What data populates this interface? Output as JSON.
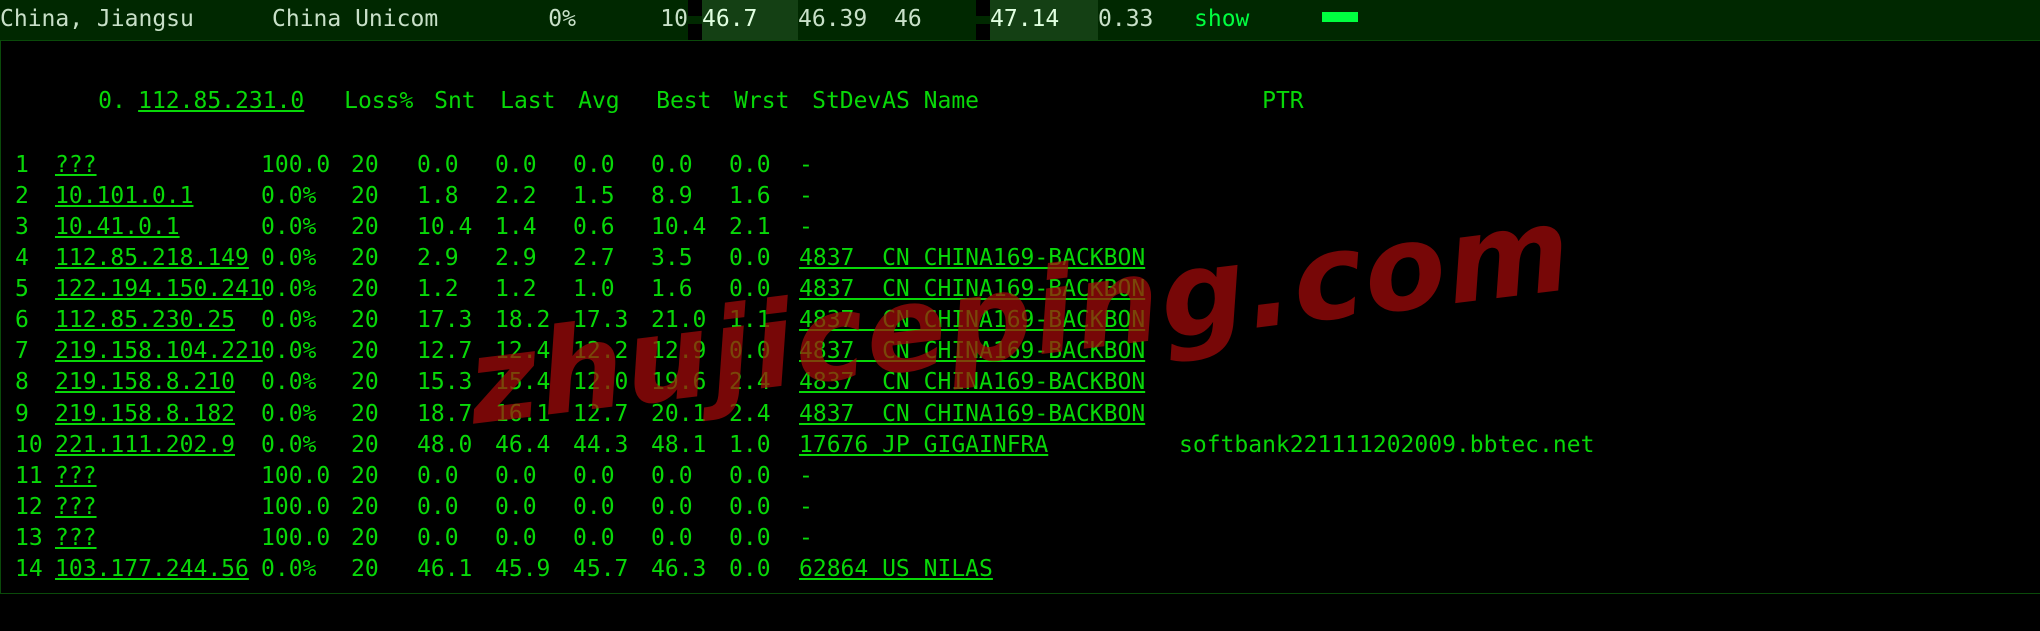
{
  "summary": {
    "location": "China, Jiangsu",
    "isp": "China Unicom",
    "loss_pct": "0%",
    "sent": "10",
    "v_last": "46.7",
    "v_avg": "46.39",
    "v_best": "46",
    "v_wrst": "47.14",
    "v_stdev": "0.33",
    "show_label": "show"
  },
  "columns": {
    "hop": "0.",
    "ip": "112.85.231.0",
    "loss": "Loss%",
    "snt": "Snt",
    "last": "Last",
    "avg": "Avg",
    "best": "Best",
    "wrst": "Wrst",
    "stdev": "StDev",
    "asname": "AS Name",
    "ptr": "PTR"
  },
  "hops": [
    {
      "n": "1",
      "ip": "???",
      "loss": "100.0",
      "snt": "20",
      "last": "0.0",
      "avg": "0.0",
      "best": "0.0",
      "wrst": "0.0",
      "std": "0.0",
      "as": "-",
      "ptr": ""
    },
    {
      "n": "2",
      "ip": "10.101.0.1",
      "loss": "0.0%",
      "snt": "20",
      "last": "1.8",
      "avg": "2.2",
      "best": "1.5",
      "wrst": "8.9",
      "std": "1.6",
      "as": "-",
      "ptr": ""
    },
    {
      "n": "3",
      "ip": "10.41.0.1",
      "loss": "0.0%",
      "snt": "20",
      "last": "10.4",
      "avg": "1.4",
      "best": "0.6",
      "wrst": "10.4",
      "std": "2.1",
      "as": "-",
      "ptr": ""
    },
    {
      "n": "4",
      "ip": "112.85.218.149",
      "loss": "0.0%",
      "snt": "20",
      "last": "2.9",
      "avg": "2.9",
      "best": "2.7",
      "wrst": "3.5",
      "std": "0.0",
      "as": "4837  CN CHINA169-BACKBON",
      "ptr": ""
    },
    {
      "n": "5",
      "ip": "122.194.150.241",
      "loss": "0.0%",
      "snt": "20",
      "last": "1.2",
      "avg": "1.2",
      "best": "1.0",
      "wrst": "1.6",
      "std": "0.0",
      "as": "4837  CN CHINA169-BACKBON",
      "ptr": ""
    },
    {
      "n": "6",
      "ip": "112.85.230.25",
      "loss": "0.0%",
      "snt": "20",
      "last": "17.3",
      "avg": "18.2",
      "best": "17.3",
      "wrst": "21.0",
      "std": "1.1",
      "as": "4837  CN CHINA169-BACKBON",
      "ptr": ""
    },
    {
      "n": "7",
      "ip": "219.158.104.221",
      "loss": "0.0%",
      "snt": "20",
      "last": "12.7",
      "avg": "12.4",
      "best": "12.2",
      "wrst": "12.9",
      "std": "0.0",
      "as": "4837  CN CHINA169-BACKBON",
      "ptr": ""
    },
    {
      "n": "8",
      "ip": "219.158.8.210",
      "loss": "0.0%",
      "snt": "20",
      "last": "15.3",
      "avg": "15.4",
      "best": "12.0",
      "wrst": "19.6",
      "std": "2.4",
      "as": "4837  CN CHINA169-BACKBON",
      "ptr": ""
    },
    {
      "n": "9",
      "ip": "219.158.8.182",
      "loss": "0.0%",
      "snt": "20",
      "last": "18.7",
      "avg": "16.1",
      "best": "12.7",
      "wrst": "20.1",
      "std": "2.4",
      "as": "4837  CN CHINA169-BACKBON",
      "ptr": ""
    },
    {
      "n": "10",
      "ip": "221.111.202.9",
      "loss": "0.0%",
      "snt": "20",
      "last": "48.0",
      "avg": "46.4",
      "best": "44.3",
      "wrst": "48.1",
      "std": "1.0",
      "as": "17676 JP GIGAINFRA",
      "ptr": "softbank221111202009.bbtec.net"
    },
    {
      "n": "11",
      "ip": "???",
      "loss": "100.0",
      "snt": "20",
      "last": "0.0",
      "avg": "0.0",
      "best": "0.0",
      "wrst": "0.0",
      "std": "0.0",
      "as": "-",
      "ptr": ""
    },
    {
      "n": "12",
      "ip": "???",
      "loss": "100.0",
      "snt": "20",
      "last": "0.0",
      "avg": "0.0",
      "best": "0.0",
      "wrst": "0.0",
      "std": "0.0",
      "as": "-",
      "ptr": ""
    },
    {
      "n": "13",
      "ip": "???",
      "loss": "100.0",
      "snt": "20",
      "last": "0.0",
      "avg": "0.0",
      "best": "0.0",
      "wrst": "0.0",
      "std": "0.0",
      "as": "-",
      "ptr": ""
    },
    {
      "n": "14",
      "ip": "103.177.244.56",
      "loss": "0.0%",
      "snt": "20",
      "last": "46.1",
      "avg": "45.9",
      "best": "45.7",
      "wrst": "46.3",
      "std": "0.0",
      "as": "62864 US NILAS",
      "ptr": ""
    }
  ],
  "watermark": "zhujiceping.com",
  "colors": {
    "bg": "#000000",
    "fg": "#08d808",
    "panel_dark": "#002800",
    "panel_hi": "#144014",
    "accent": "#00ff40",
    "border": "#0a4a0a",
    "watermark": "rgba(170,10,10,0.70)"
  }
}
